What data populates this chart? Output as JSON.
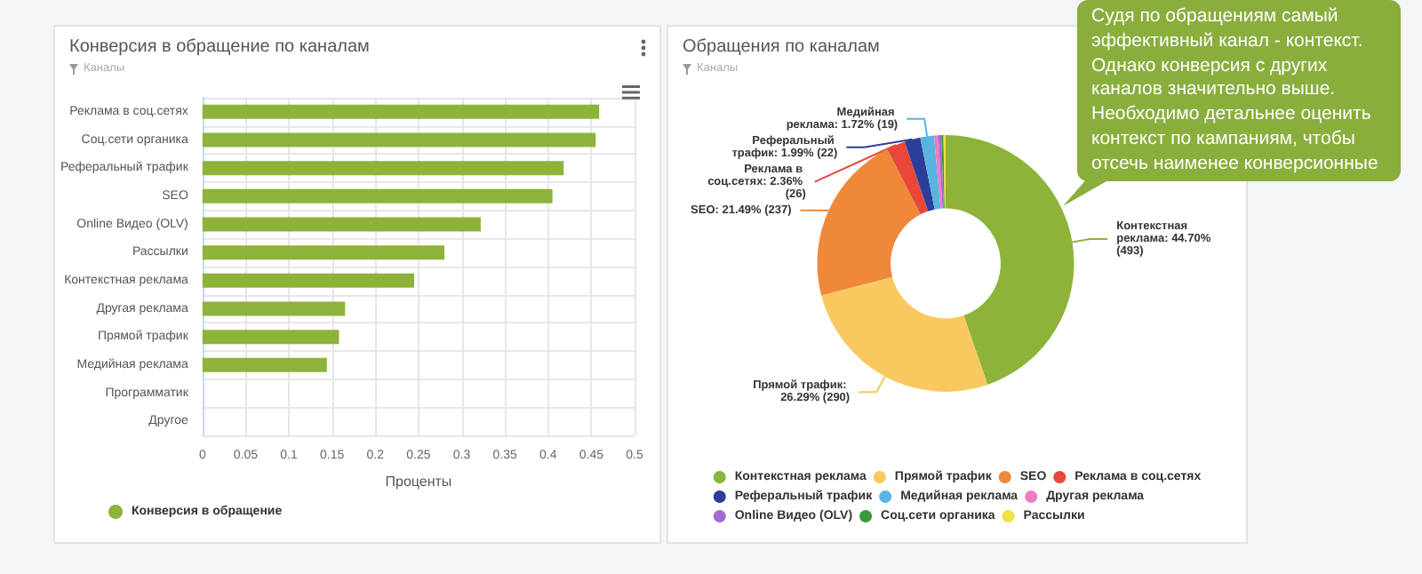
{
  "chart_data": [
    {
      "type": "bar",
      "orientation": "horizontal",
      "title": "Конверсия в обращение по каналам",
      "subtitle": "Каналы",
      "xlabel": "Проценты",
      "categories": [
        "Реклама в соц.сетях",
        "Соц.сети органика",
        "Реферальный трафик",
        "SEO",
        "Online Видео (OLV)",
        "Рассылки",
        "Контекстная реклама",
        "Другая реклама",
        "Прямой трафик",
        "Медийная реклама",
        "Программатик",
        "Другое"
      ],
      "series": [
        {
          "name": "Конверсия в обращение",
          "color": "#8db33a",
          "values": [
            0.459,
            0.455,
            0.418,
            0.405,
            0.322,
            0.28,
            0.245,
            0.165,
            0.158,
            0.144,
            0,
            0
          ]
        }
      ],
      "xlim": [
        0,
        0.5
      ],
      "xticks": [
        0,
        0.05,
        0.1,
        0.15,
        0.2,
        0.25,
        0.3,
        0.35,
        0.4,
        0.45,
        0.5
      ],
      "grid": true,
      "legend": "bottom left"
    },
    {
      "type": "donut",
      "title": "Обращения по каналам",
      "subtitle": "Каналы",
      "categories": [
        "Контекстная реклама",
        "Прямой трафик",
        "SEO",
        "Реклама в соц.сетях",
        "Реферальный трафик",
        "Медийная реклама",
        "Другая реклама",
        "Online Видео (OLV)",
        "Соц.сети органика",
        "Рассылки"
      ],
      "values": [
        493,
        290,
        237,
        26,
        22,
        19,
        6,
        4,
        3,
        3
      ],
      "colors": [
        "#8db33a",
        "#f9c95f",
        "#f0883a",
        "#e8473a",
        "#2c3e99",
        "#5ab4e0",
        "#f07cc0",
        "#a569d4",
        "#3a9a3a",
        "#f0e040"
      ],
      "value_labels": [
        "Контекстная реклама: 44.70% (493)",
        "Прямой трафик: 26.29% (290)",
        "SEO: 21.49% (237)",
        "Реклама в соц.сетях: 2.36% (26)",
        "Реферальный трафик: 1.99% (22)",
        "Медийная реклама: 1.72% (19)",
        null,
        null,
        null,
        null
      ],
      "legend": "bottom",
      "annotations": [
        "Судя по обращениям самый эффективный канал - контекст. Однако конверсия с других каналов значительно выше. Необходимо детальнее оценить контекст по кампаниям, чтобы отсечь наименее конверсионные"
      ]
    }
  ]
}
